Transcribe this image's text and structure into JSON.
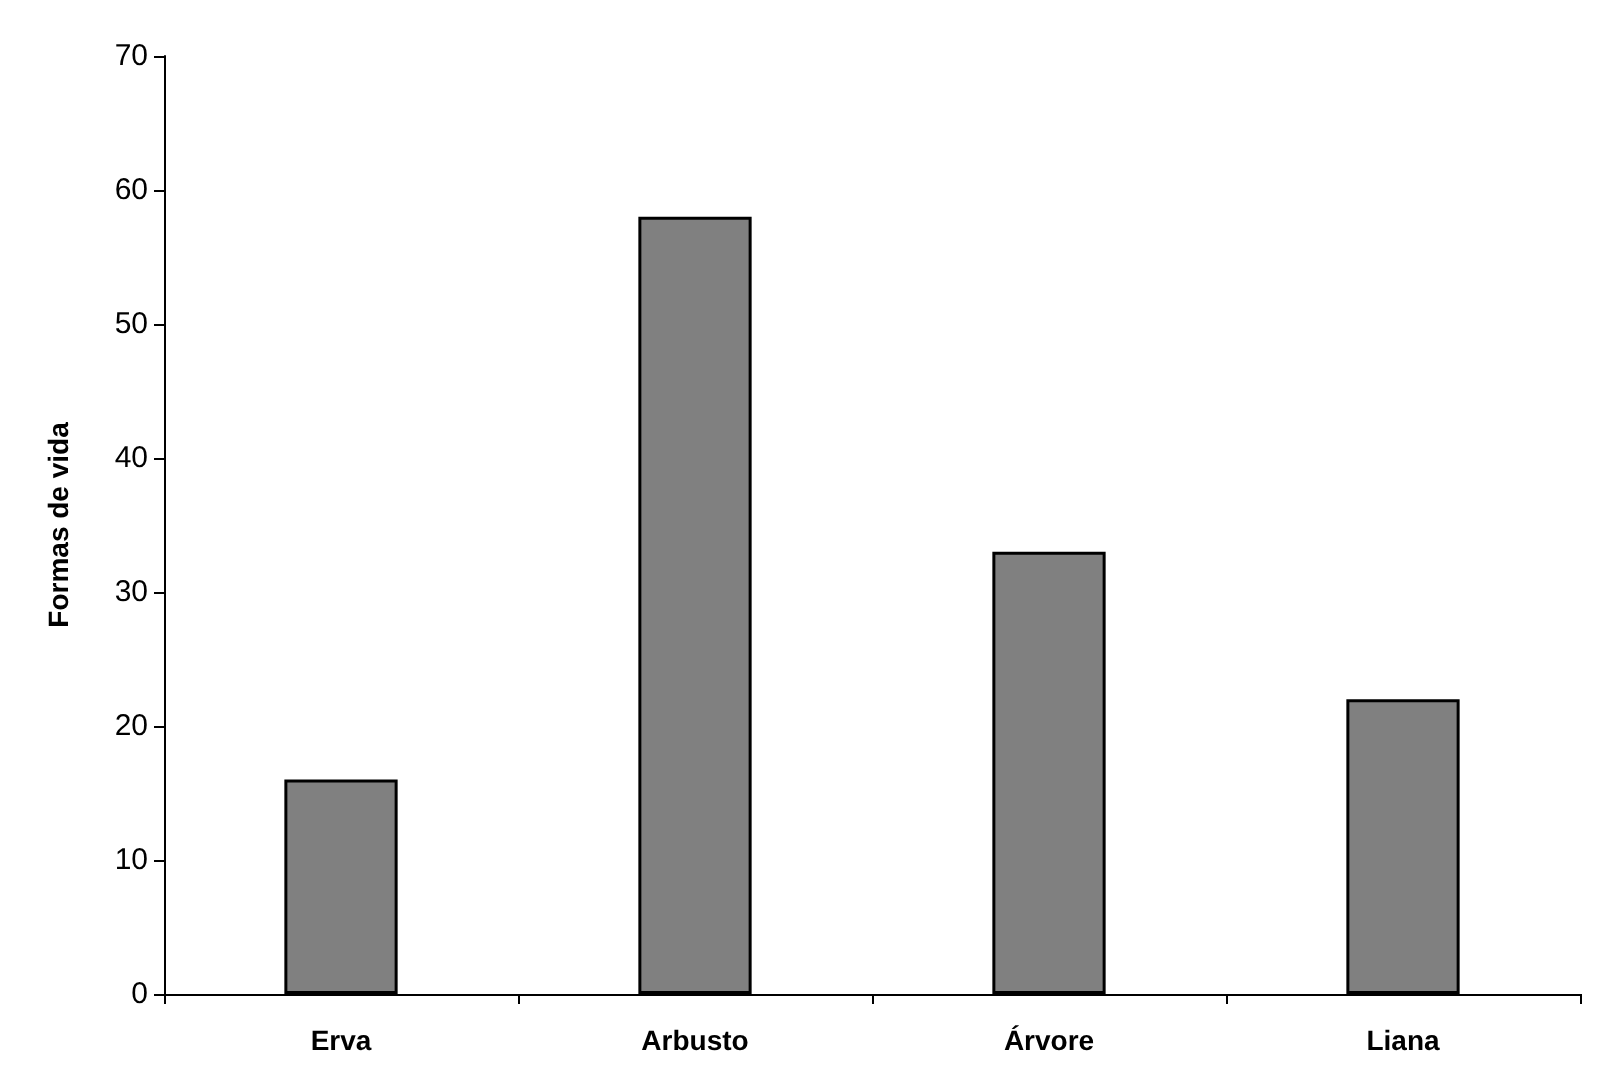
{
  "chart_data": {
    "type": "bar",
    "ylabel": "Formas de vida",
    "categories": [
      "Erva",
      "Arbusto",
      "Árvore",
      "Liana"
    ],
    "values": [
      16,
      58,
      33,
      22
    ],
    "color": "#808080",
    "ylim": [
      0,
      70
    ],
    "yticks": [
      0,
      10,
      20,
      30,
      40,
      50,
      60,
      70
    ],
    "grid": false
  }
}
